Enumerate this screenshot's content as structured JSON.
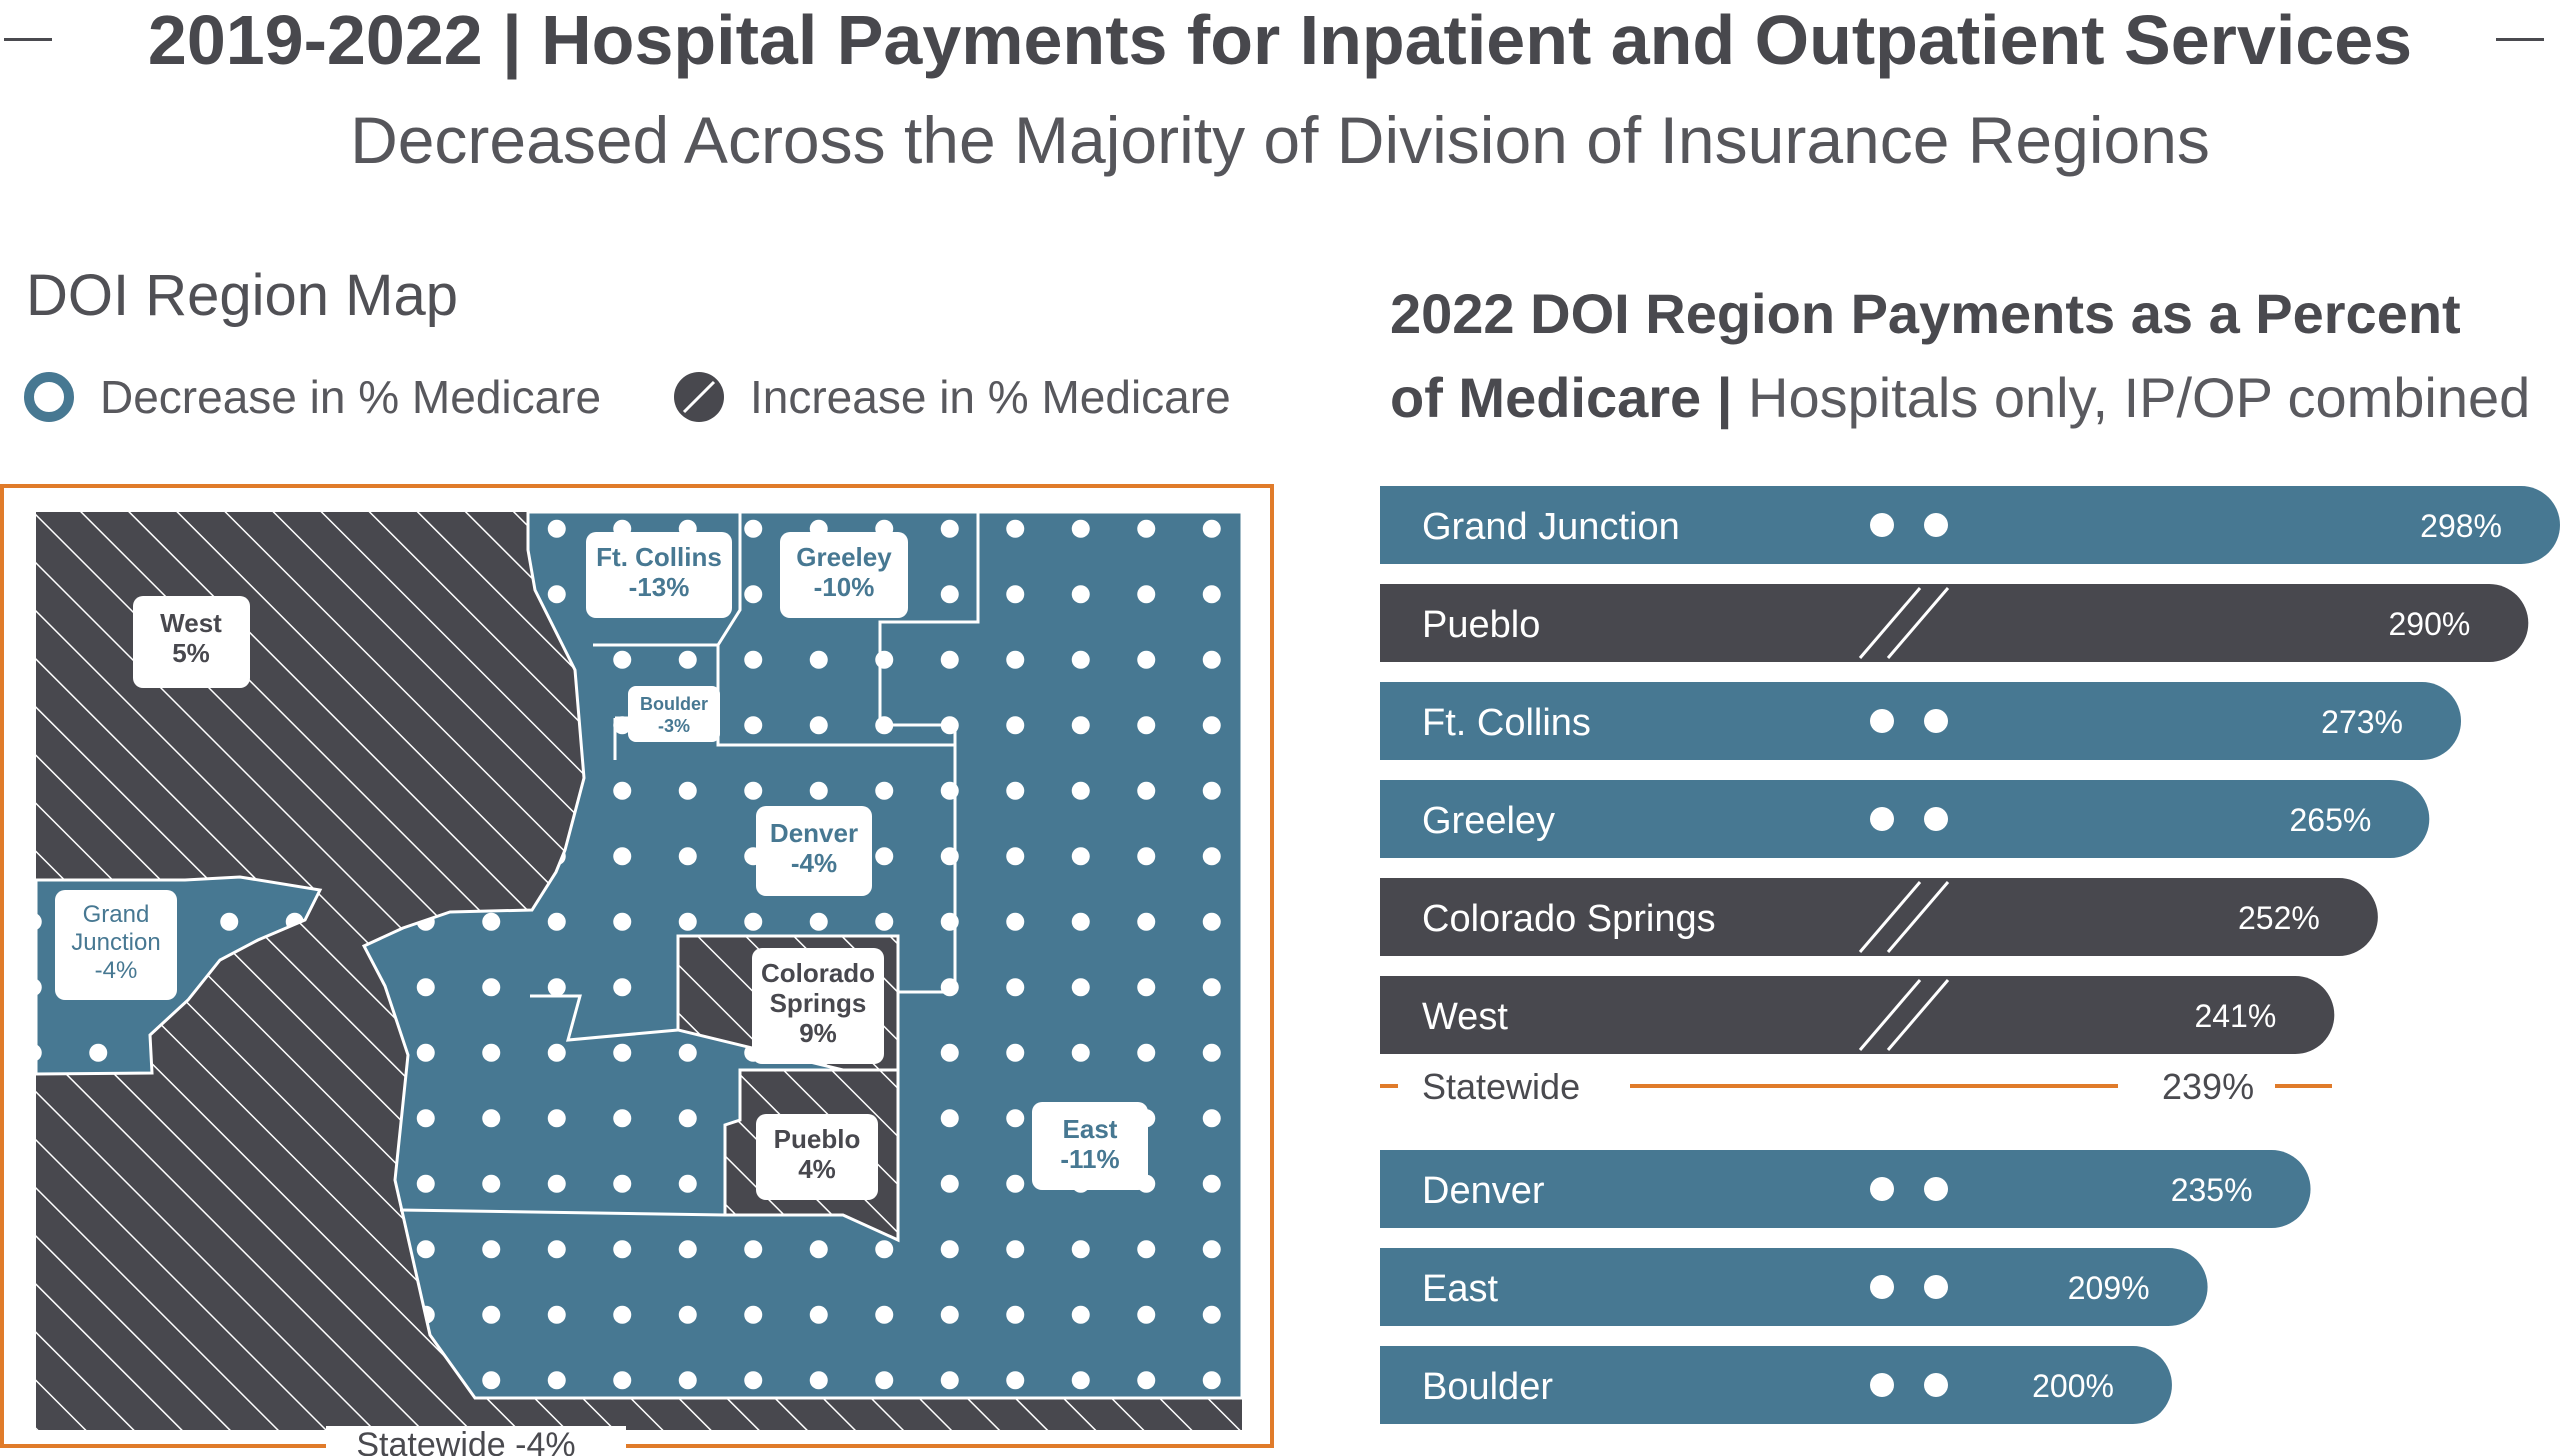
{
  "header": {
    "title": "2019-2022 | Hospital Payments for Inpatient and Outpatient Services",
    "subtitle": "Decreased Across the Majority of Division of Insurance Regions"
  },
  "map": {
    "title": "DOI Region Map",
    "legend": {
      "decrease": "Decrease in % Medicare",
      "increase": "Increase in % Medicare"
    },
    "statewide": "Statewide -4%",
    "regions": [
      {
        "name": "West",
        "value": "5%",
        "direction": "increase"
      },
      {
        "name": "Ft. Collins",
        "value": "-13%",
        "direction": "decrease"
      },
      {
        "name": "Greeley",
        "value": "-10%",
        "direction": "decrease"
      },
      {
        "name": "Boulder",
        "value": "-3%",
        "direction": "decrease"
      },
      {
        "name": "Denver",
        "value": "-4%",
        "direction": "decrease"
      },
      {
        "name": "Grand Junction",
        "value": "-4%",
        "direction": "decrease"
      },
      {
        "name": "Colorado Springs",
        "value": "9%",
        "direction": "increase"
      },
      {
        "name": "Pueblo",
        "value": "4%",
        "direction": "increase"
      },
      {
        "name": "East",
        "value": "-11%",
        "direction": "decrease"
      }
    ],
    "label_lines": {
      "west": [
        "West",
        "5%"
      ],
      "ftcollins": [
        "Ft. Collins",
        "-13%"
      ],
      "greeley": [
        "Greeley",
        "-10%"
      ],
      "boulder": [
        "Boulder",
        "-3%"
      ],
      "denver": [
        "Denver",
        "-4%"
      ],
      "grandjunction": [
        "Grand",
        "Junction",
        "-4%"
      ],
      "cosprings": [
        "Colorado",
        "Springs",
        "9%"
      ],
      "pueblo": [
        "Pueblo",
        "4%"
      ],
      "east": [
        "East",
        "-11%"
      ]
    }
  },
  "bar_chart": {
    "title_bold": "2022 DOI Region Payments as a Percent",
    "title_bold_2": "of Medicare |",
    "title_light": "Hospitals only, IP/OP combined"
  },
  "chart_data": {
    "type": "bar",
    "orientation": "horizontal",
    "title": "2022 DOI Region Payments as a Percent of Medicare | Hospitals only, IP/OP combined",
    "unit": "% of Medicare",
    "categories": [
      "Grand Junction",
      "Pueblo",
      "Ft. Collins",
      "Greeley",
      "Colorado Springs",
      "West",
      "Denver",
      "East",
      "Boulder"
    ],
    "values": [
      298,
      290,
      273,
      265,
      252,
      241,
      235,
      209,
      200
    ],
    "value_labels": [
      "298%",
      "290%",
      "273%",
      "265%",
      "252%",
      "241%",
      "235%",
      "209%",
      "200%"
    ],
    "direction": [
      "decrease",
      "increase",
      "decrease",
      "decrease",
      "increase",
      "increase",
      "decrease",
      "decrease",
      "decrease"
    ],
    "reference_line": {
      "label": "Statewide",
      "value": 239,
      "value_label": "239%",
      "position_after_index": 5
    },
    "xlim": [
      0,
      298
    ],
    "colors": {
      "decrease": "#477892",
      "increase": "#48484e",
      "accent": "#e07b2a"
    }
  }
}
